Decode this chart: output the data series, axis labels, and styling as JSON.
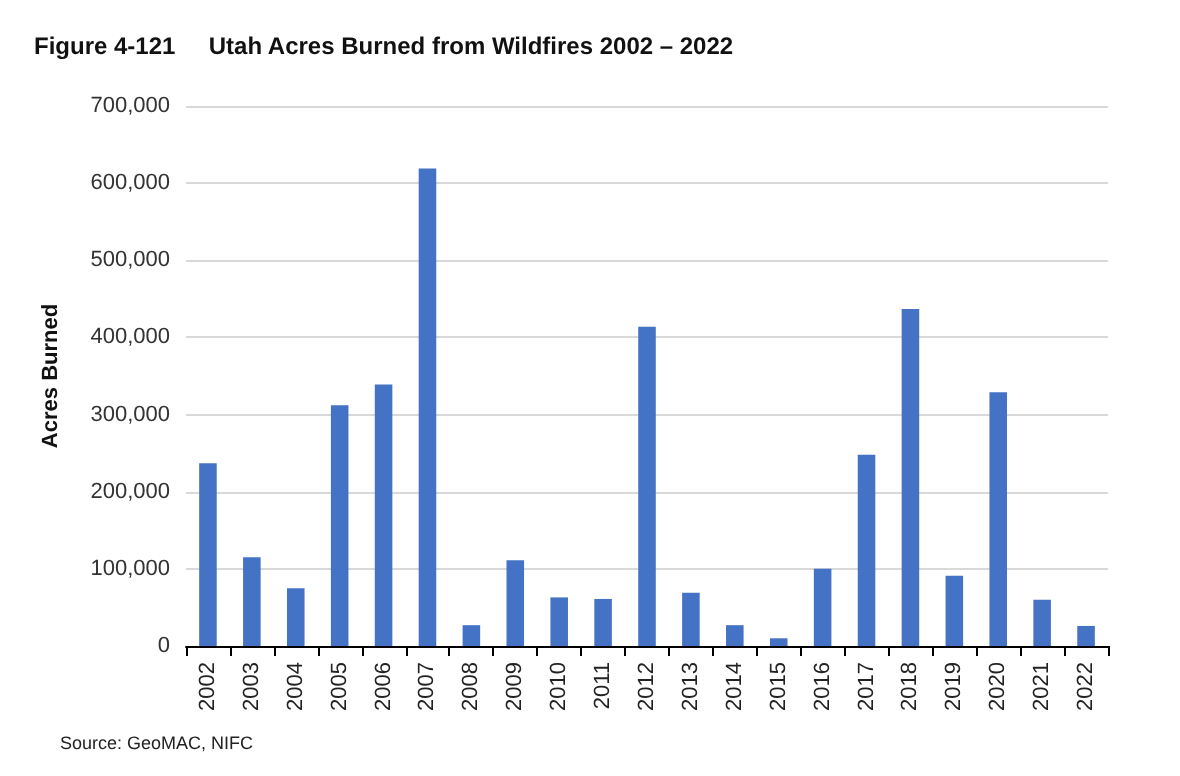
{
  "chart_data": {
    "type": "bar",
    "title": "Figure 4-121     Utah Acres Burned from Wildfires 2002 – 2022",
    "ylabel": "Acres Burned",
    "categories": [
      "2002",
      "2003",
      "2004",
      "2005",
      "2006",
      "2007",
      "2008",
      "2009",
      "2010",
      "2011",
      "2012",
      "2013",
      "2014",
      "2015",
      "2016",
      "2017",
      "2018",
      "2019",
      "2020",
      "2021",
      "2022"
    ],
    "values": [
      237000,
      115000,
      75000,
      312000,
      339000,
      619000,
      27000,
      111000,
      63000,
      61000,
      414000,
      69000,
      27000,
      10000,
      100000,
      248000,
      437000,
      91000,
      329000,
      60000,
      26000
    ],
    "color": "#4472c4",
    "ylim": [
      0,
      700000
    ],
    "yticks": [
      {
        "value": 0,
        "label": "0"
      },
      {
        "value": 100000,
        "label": "100,000"
      },
      {
        "value": 200000,
        "label": "200,000"
      },
      {
        "value": 300000,
        "label": "300,000"
      },
      {
        "value": 400000,
        "label": "400,000"
      },
      {
        "value": 500000,
        "label": "500,000"
      },
      {
        "value": 600000,
        "label": "600,000"
      },
      {
        "value": 700000,
        "label": "700,000"
      }
    ],
    "grid": "y",
    "annotations": [
      "Source: GeoMAC, NIFC"
    ]
  }
}
